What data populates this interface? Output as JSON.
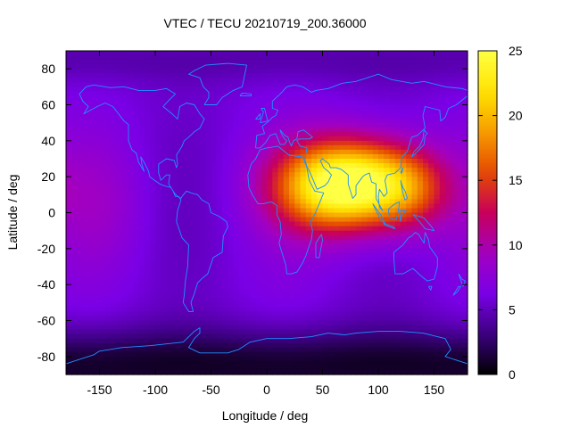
{
  "chart_data": {
    "type": "heatmap",
    "title": "VTEC / TECU 20210719_200.36000",
    "xlabel": "Longitude / deg",
    "ylabel": "Latitude / deg",
    "xlim": [
      -180,
      180
    ],
    "ylim": [
      -90,
      90
    ],
    "xticks": [
      -150,
      -100,
      -50,
      0,
      50,
      100,
      150
    ],
    "yticks": [
      -80,
      -60,
      -40,
      -20,
      0,
      20,
      40,
      60,
      80
    ],
    "colorbar": {
      "range": [
        0,
        25
      ],
      "ticks": [
        0,
        5,
        10,
        15,
        20,
        25
      ],
      "palette": [
        "#000000",
        "#3b007f",
        "#7a00e6",
        "#a300c0",
        "#c8005a",
        "#e54a00",
        "#f79c00",
        "#ffe400",
        "#ffff44"
      ]
    },
    "grid_step_deg": {
      "lon": 5,
      "lat": 2.5
    },
    "field_description": "Smooth VTEC map with a broad equatorial anomaly peaking near 25 TECU around lon 85, lat 15; background ~5-9 TECU; minimum ~1-2 TECU near the south pole; coastlines overlaid.",
    "field_model": {
      "background": 6.0,
      "components": [
        {
          "lon": 85,
          "lat": 16,
          "amp": 17.0,
          "sigma_lon": 40,
          "sigma_lat": 17
        },
        {
          "lon": 45,
          "lat": 14,
          "amp": 8.0,
          "sigma_lon": 35,
          "sigma_lat": 18
        },
        {
          "lon": 130,
          "lat": 12,
          "amp": 5.0,
          "sigma_lon": 25,
          "sigma_lat": 16
        },
        {
          "lon": -150,
          "lat": 5,
          "amp": 2.0,
          "sigma_lon": 30,
          "sigma_lat": 25
        }
      ],
      "south_pole_depression": {
        "lat_center": -85,
        "amp": 5.0,
        "sigma_lat": 15
      },
      "north_arctic_depression": {
        "lat_center": 85,
        "amp": 1.5,
        "sigma_lat": 10
      }
    },
    "coastline_color": "#1e90ff"
  }
}
